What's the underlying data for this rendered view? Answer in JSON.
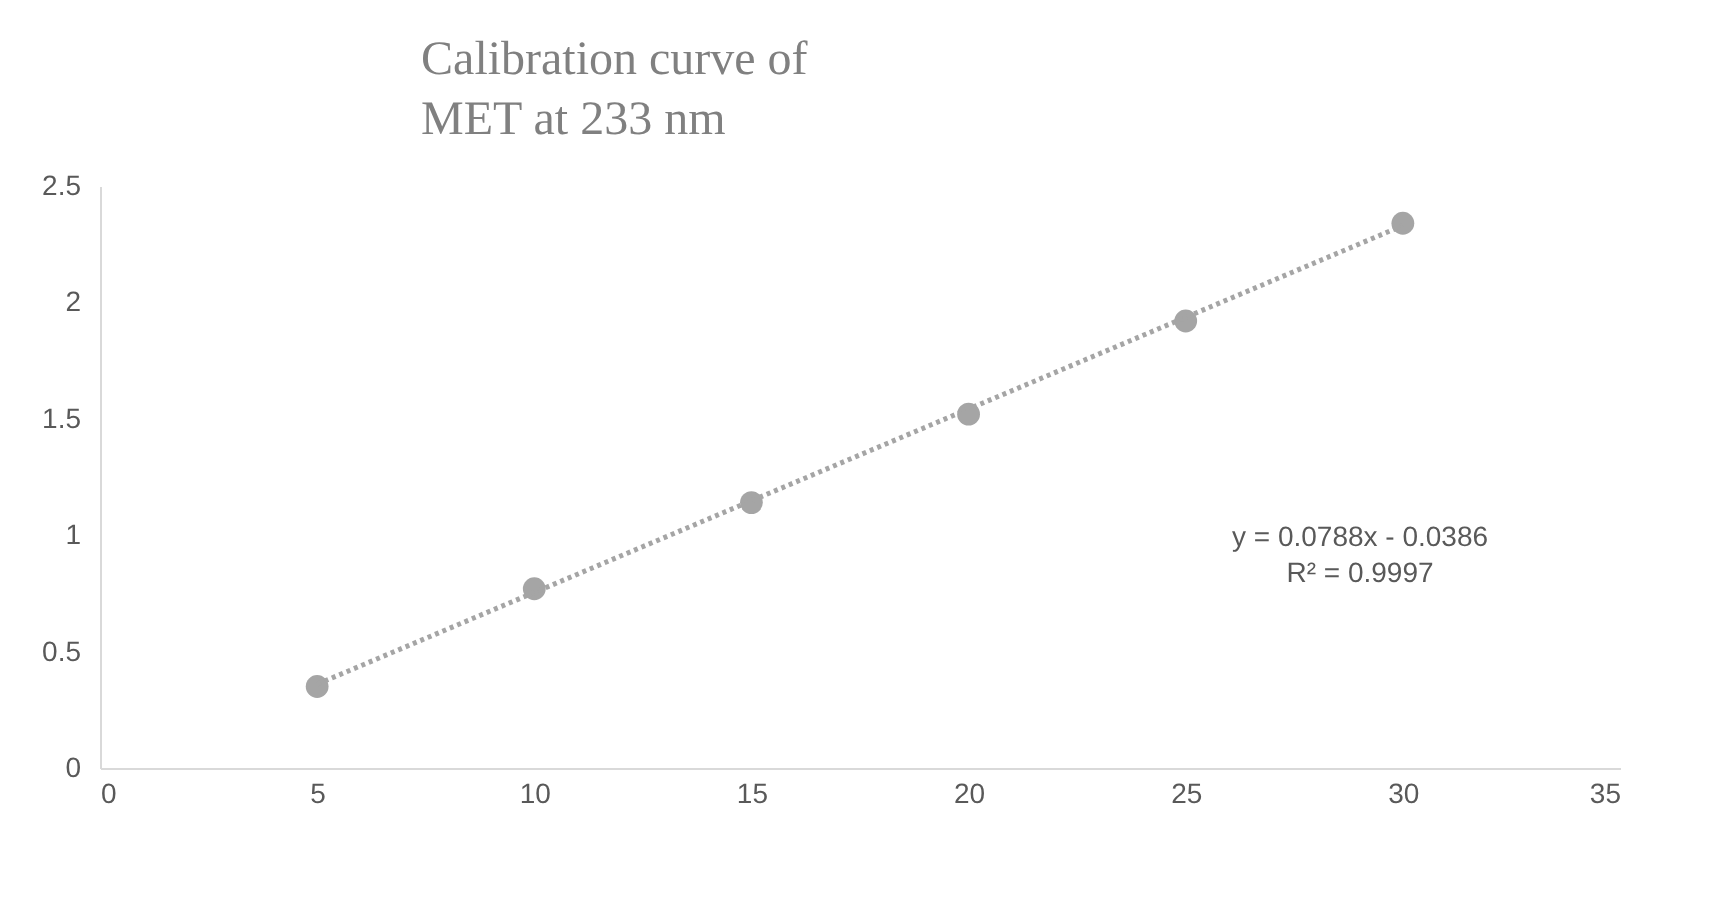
{
  "chart_data": {
    "type": "scatter",
    "title": "Calibration curve of\nMET at 233 nm",
    "x": [
      5,
      10,
      15,
      20,
      25,
      30
    ],
    "series": [
      {
        "color": "#a5a5a5",
        "values": [
          0.35,
          0.77,
          1.14,
          1.52,
          1.92,
          2.34
        ],
        "marker": "circle"
      },
      {
        "type": "line",
        "color": "#a5a5a5",
        "x": [
          5,
          30
        ],
        "values": [
          0.36,
          2.33
        ],
        "line_style": "dotted"
      }
    ],
    "xlim": [
      0,
      35
    ],
    "xticks": [
      0,
      5,
      10,
      15,
      20,
      25,
      30,
      35
    ],
    "ylim": [
      0,
      2.5
    ],
    "yticks": [
      0,
      0.5,
      1,
      1.5,
      2,
      2.5
    ],
    "grid": false,
    "annotations": [
      "y = 0.0788x - 0.0386",
      "R² = 0.9997"
    ]
  }
}
